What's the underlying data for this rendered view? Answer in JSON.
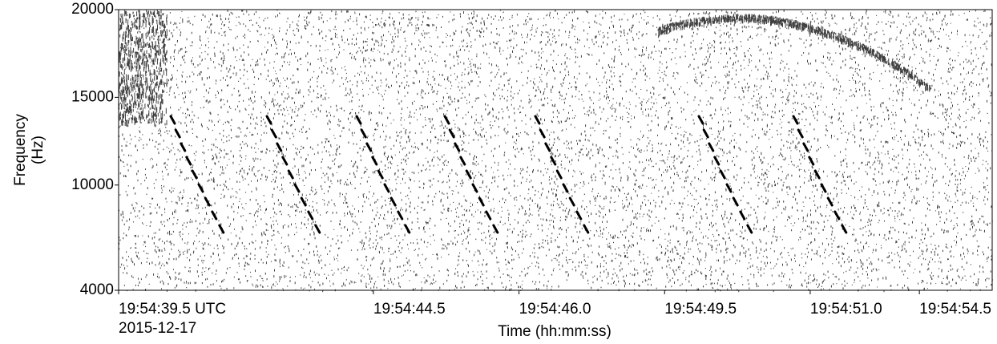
{
  "chart_data": {
    "type": "spectrogram",
    "y_label": [
      "Frequency",
      "(Hz)"
    ],
    "x_label": "Time (hh:mm:ss)",
    "date_label": "2015-12-17",
    "categories": [
      "19:54:39.5 UTC",
      null,
      null,
      null,
      null,
      null,
      null,
      "19:54:44.5",
      null,
      null,
      null,
      "19:54:46.0",
      null,
      null,
      null,
      "19:54:49.5",
      null,
      null,
      null,
      "19:54:51.0",
      null,
      null,
      "19:54:54.5",
      null
    ],
    "ylim": [
      4000,
      20000
    ],
    "yticks": [
      4000,
      10000,
      15000,
      20000
    ],
    "color": "#000000"
  }
}
